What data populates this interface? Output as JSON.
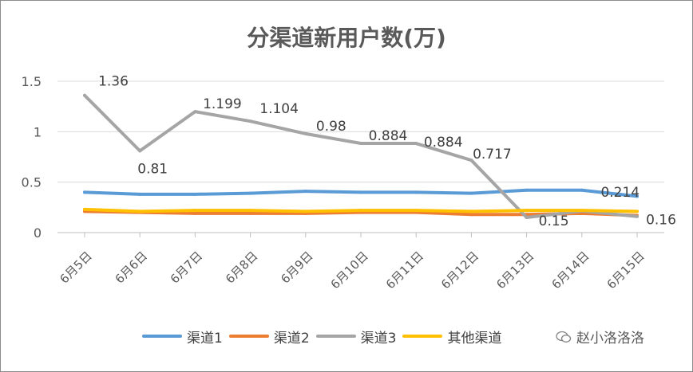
{
  "chart_data": {
    "type": "line",
    "title": "分渠道新用户数(万)",
    "categories": [
      "6月5日",
      "6月6日",
      "6月7日",
      "6月8日",
      "6月9日",
      "6月10日",
      "6月11日",
      "6月12日",
      "6月13日",
      "6月14日",
      "6月15日"
    ],
    "ylim": [
      0,
      1.5
    ],
    "yticks": [
      "0",
      "0.5",
      "1",
      "1.5"
    ],
    "grid": true,
    "legend_position": "bottom",
    "series": [
      {
        "name": "渠道1",
        "color": "#5b9bd5",
        "values": [
          0.4,
          0.38,
          0.38,
          0.39,
          0.41,
          0.4,
          0.4,
          0.39,
          0.42,
          0.42,
          0.36
        ]
      },
      {
        "name": "渠道2",
        "color": "#ed7d31",
        "values": [
          0.21,
          0.2,
          0.19,
          0.19,
          0.19,
          0.2,
          0.2,
          0.18,
          0.18,
          0.19,
          0.17
        ]
      },
      {
        "name": "渠道3",
        "color": "#a5a5a5",
        "values": [
          1.36,
          0.81,
          1.199,
          1.104,
          0.98,
          0.884,
          0.884,
          0.717,
          0.15,
          0.214,
          0.16
        ],
        "labels": [
          "1.36",
          "0.81",
          "1.199",
          "1.104",
          "0.98",
          "0.884",
          "0.884",
          "0.717",
          "0.15",
          "0.214",
          "0.16"
        ]
      },
      {
        "name": "其他渠道",
        "color": "#ffc000",
        "values": [
          0.23,
          0.21,
          0.22,
          0.22,
          0.21,
          0.22,
          0.22,
          0.21,
          0.22,
          0.22,
          0.21
        ]
      }
    ]
  },
  "watermark": {
    "text": "赵小洛洛洛"
  }
}
